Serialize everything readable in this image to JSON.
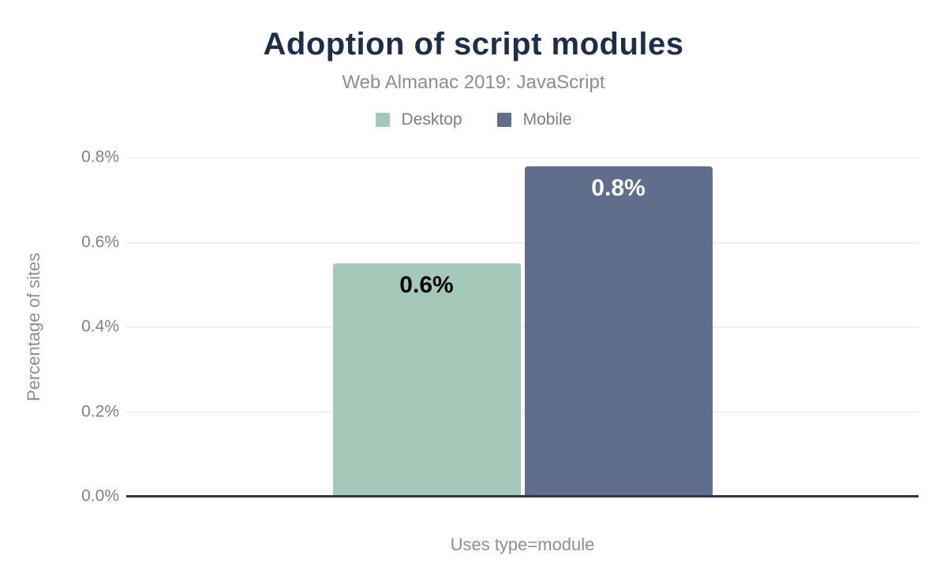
{
  "chart_data": {
    "type": "bar",
    "title": "Adoption of script modules",
    "subtitle": "Web Almanac 2019: JavaScript",
    "categories": [
      "Uses type=module"
    ],
    "series": [
      {
        "name": "Desktop",
        "values": [
          0.55
        ],
        "value_labels": [
          "0.6%"
        ],
        "color": "#a4c9b8",
        "value_label_color": "#000000"
      },
      {
        "name": "Mobile",
        "values": [
          0.78
        ],
        "value_labels": [
          "0.8%"
        ],
        "color": "#5e6e8c",
        "value_label_color": "#ffffff"
      }
    ],
    "xlabel": "Uses type=module",
    "ylabel": "Percentage of sites",
    "ylim": [
      0,
      0.8
    ],
    "yticks": [
      {
        "value": 0.0,
        "label": "0.0%"
      },
      {
        "value": 0.2,
        "label": "0.2%"
      },
      {
        "value": 0.4,
        "label": "0.4%"
      },
      {
        "value": 0.6,
        "label": "0.6%"
      },
      {
        "value": 0.8,
        "label": "0.8%"
      }
    ],
    "grid": true,
    "legend_position": "top",
    "colors": {
      "title": "#1d2e4a",
      "subtitle": "#898e94",
      "axis_text": "#8a8f96",
      "gridline": "#f0f0f3",
      "axis_line": "#31373f"
    }
  }
}
